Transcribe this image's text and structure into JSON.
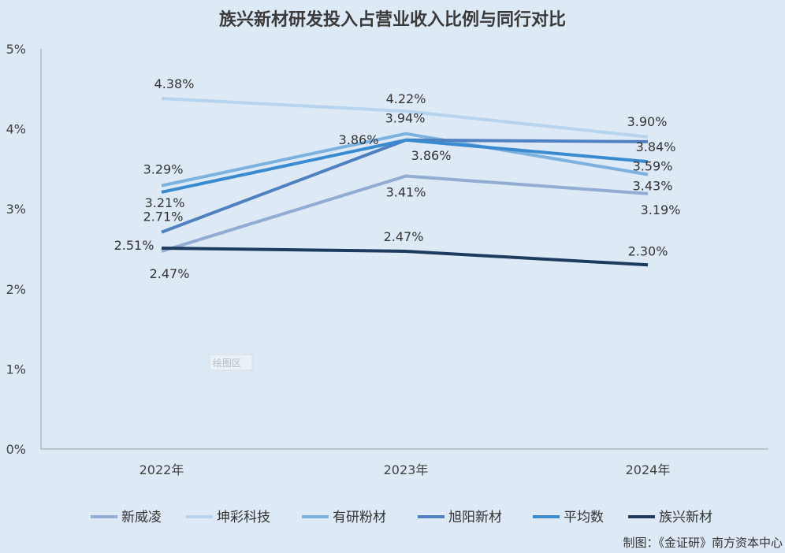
{
  "chart_data": {
    "type": "line",
    "title": "族兴新材研发投入占营业收入比例与同行对比",
    "categories": [
      "2022年",
      "2023年",
      "2024年"
    ],
    "ylim": [
      0,
      5
    ],
    "yticks": [
      "0%",
      "1%",
      "2%",
      "3%",
      "4%",
      "5%"
    ],
    "grid": false,
    "legend_position": "bottom",
    "series": [
      {
        "name": "新威凌",
        "values": [
          2.47,
          3.41,
          3.19
        ],
        "labels": [
          "2.47%",
          "3.41%",
          "3.19%"
        ],
        "color": "#92acd4"
      },
      {
        "name": "坤彩科技",
        "values": [
          4.38,
          4.22,
          3.9
        ],
        "labels": [
          "4.38%",
          "4.22%",
          "3.90%"
        ],
        "color": "#b7d4ee"
      },
      {
        "name": "有研粉材",
        "values": [
          3.29,
          3.94,
          3.43
        ],
        "labels": [
          "3.29%",
          "3.94%",
          "3.43%"
        ],
        "color": "#7cb2df"
      },
      {
        "name": "旭阳新材",
        "values": [
          2.71,
          3.86,
          3.84
        ],
        "labels": [
          "2.71%",
          "3.86%",
          "3.84%"
        ],
        "color": "#4f80bf"
      },
      {
        "name": "平均数",
        "values": [
          3.21,
          3.86,
          3.59
        ],
        "labels": [
          "3.21%",
          "3.86%",
          "3.59%"
        ],
        "color": "#3a8ad0"
      },
      {
        "name": "族兴新材",
        "values": [
          2.51,
          2.47,
          2.3
        ],
        "labels": [
          "2.51%",
          "2.47%",
          "2.30%"
        ],
        "color": "#1d3b5e"
      }
    ]
  },
  "footer_note": "制图：《金证研》南方资本中心",
  "plot_area_tag": "绘图区"
}
